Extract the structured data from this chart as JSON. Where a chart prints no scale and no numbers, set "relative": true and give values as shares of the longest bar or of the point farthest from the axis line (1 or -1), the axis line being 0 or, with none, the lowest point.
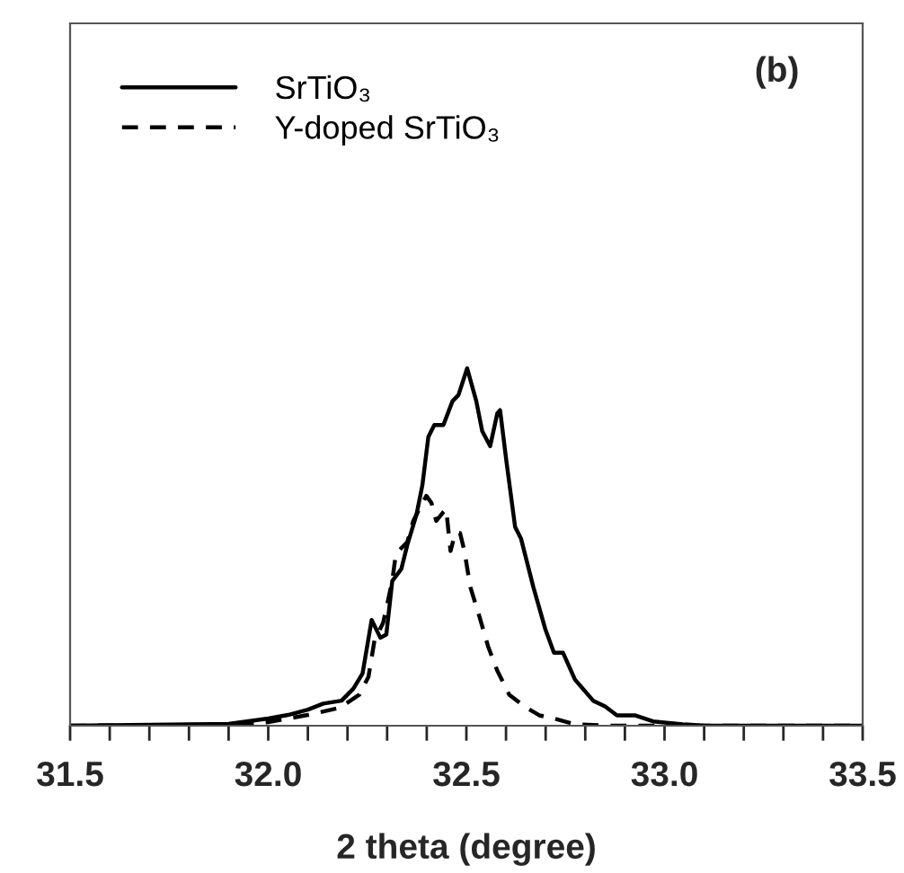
{
  "chart_data": {
    "type": "line",
    "relative": true,
    "xlabel": "2 theta (degree)",
    "annotations": [
      "(b)"
    ],
    "legend": "top left",
    "grid": false,
    "marker": "none",
    "xlim": [
      31.5,
      33.5
    ],
    "xticks": [
      31.5,
      {
        "value": 31.6,
        "label": null
      },
      {
        "value": 31.7,
        "label": null
      },
      {
        "value": 31.8,
        "label": null
      },
      {
        "value": 31.9,
        "label": null
      },
      {
        "value": 32.0,
        "label": "32.0"
      },
      {
        "value": 32.1,
        "label": null
      },
      {
        "value": 32.2,
        "label": null
      },
      {
        "value": 32.3,
        "label": null
      },
      {
        "value": 32.4,
        "label": null
      },
      32.5,
      {
        "value": 32.6,
        "label": null
      },
      {
        "value": 32.7,
        "label": null
      },
      {
        "value": 32.8,
        "label": null
      },
      {
        "value": 32.9,
        "label": null
      },
      {
        "value": 33.0,
        "label": "33.0"
      },
      {
        "value": 33.1,
        "label": null
      },
      {
        "value": 33.2,
        "label": null
      },
      {
        "value": 33.3,
        "label": null
      },
      {
        "value": 33.4,
        "label": null
      },
      33.5
    ],
    "series": [
      {
        "name": "SrTiO₃",
        "color": "#000000",
        "line_style": "solid",
        "x": [
          31.5,
          31.9,
          32.0,
          32.05,
          32.1,
          32.139,
          32.185,
          32.215,
          32.238,
          32.261,
          32.283,
          32.298,
          32.313,
          32.336,
          32.351,
          32.374,
          32.389,
          32.404,
          32.419,
          32.442,
          32.465,
          32.48,
          32.502,
          32.525,
          32.54,
          32.56,
          32.578,
          32.585,
          32.601,
          32.623,
          32.638,
          32.669,
          32.699,
          32.721,
          32.744,
          32.774,
          32.82,
          32.85,
          32.88,
          32.925,
          32.971,
          33.046,
          33.1,
          33.5
        ],
        "values": [
          0.0,
          0.005,
          0.02,
          0.03,
          0.045,
          0.062,
          0.07,
          0.104,
          0.146,
          0.296,
          0.246,
          0.255,
          0.405,
          0.439,
          0.506,
          0.59,
          0.673,
          0.808,
          0.841,
          0.841,
          0.908,
          0.925,
          1.0,
          0.908,
          0.824,
          0.782,
          0.874,
          0.883,
          0.74,
          0.556,
          0.523,
          0.388,
          0.271,
          0.204,
          0.204,
          0.129,
          0.07,
          0.054,
          0.029,
          0.029,
          0.012,
          0.004,
          0.0,
          0.0
        ]
      },
      {
        "name": "Y-doped SrTiO₃",
        "color": "#000000",
        "line_style": "dashed",
        "x": [
          31.5,
          31.9,
          32.0,
          32.1,
          32.18,
          32.23,
          32.253,
          32.268,
          32.29,
          32.313,
          32.321,
          32.329,
          32.351,
          32.366,
          32.381,
          32.399,
          32.412,
          32.424,
          32.442,
          32.449,
          32.46,
          32.472,
          32.484,
          32.495,
          32.51,
          32.533,
          32.555,
          32.578,
          32.608,
          32.646,
          32.684,
          32.721,
          32.774,
          32.865,
          33.5
        ],
        "values": [
          0.0,
          0.003,
          0.01,
          0.03,
          0.05,
          0.087,
          0.137,
          0.238,
          0.288,
          0.405,
          0.472,
          0.489,
          0.514,
          0.573,
          0.606,
          0.643,
          0.623,
          0.573,
          0.598,
          0.606,
          0.489,
          0.539,
          0.539,
          0.489,
          0.388,
          0.305,
          0.221,
          0.154,
          0.087,
          0.054,
          0.029,
          0.02,
          0.004,
          0.0,
          0.0
        ]
      }
    ]
  }
}
